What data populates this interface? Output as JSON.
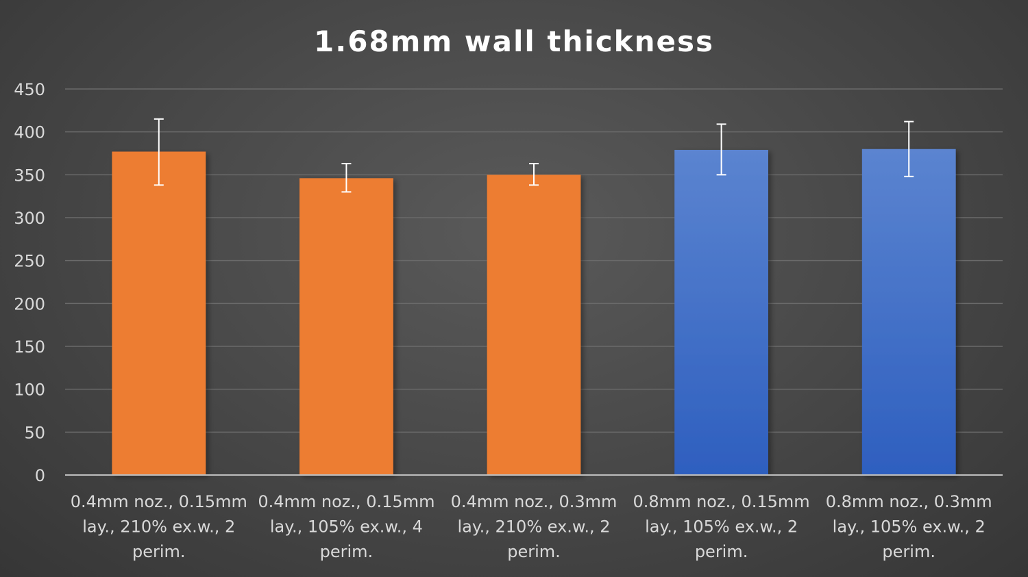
{
  "chart_data": {
    "type": "bar",
    "title": "1.68mm wall thickness",
    "xlabel": "",
    "ylabel": "",
    "ylim": [
      0,
      450
    ],
    "yticks": [
      0,
      50,
      100,
      150,
      200,
      250,
      300,
      350,
      400,
      450
    ],
    "grid": true,
    "legend": "none",
    "categories": [
      [
        "0.4mm noz., 0.15mm",
        "lay., 210% ex.w., 2",
        "perim."
      ],
      [
        "0.4mm noz., 0.15mm",
        "lay., 105% ex.w., 4",
        "perim."
      ],
      [
        "0.4mm noz., 0.3mm",
        "lay., 210% ex.w., 2",
        "perim."
      ],
      [
        "0.8mm noz., 0.15mm",
        "lay., 105% ex.w., 2",
        "perim."
      ],
      [
        "0.8mm noz., 0.3mm",
        "lay., 105% ex.w., 2",
        "perim."
      ]
    ],
    "values": [
      377,
      346,
      350,
      379,
      380
    ],
    "error_low": [
      338,
      330,
      338,
      350,
      348
    ],
    "error_high": [
      415,
      363,
      363,
      409,
      412
    ],
    "bar_colors": [
      "#ed7d31",
      "#ed7d31",
      "#ed7d31",
      "#4472c4",
      "#4472c4"
    ]
  }
}
